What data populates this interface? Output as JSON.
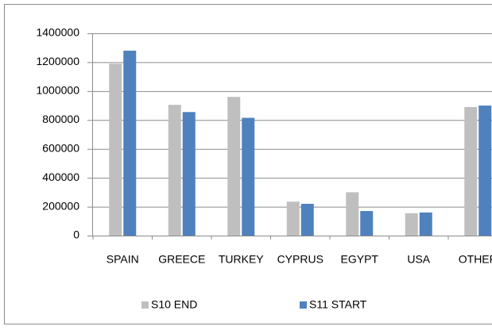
{
  "chart_data": {
    "type": "bar",
    "categories": [
      "SPAIN",
      "GREECE",
      "TURKEY",
      "CYPRUS",
      "EGYPT",
      "USA",
      "OTHER"
    ],
    "series": [
      {
        "name": "S10 END",
        "color": "#bfbfbf",
        "values": [
          1190000,
          905000,
          960000,
          235000,
          300000,
          155000,
          890000
        ]
      },
      {
        "name": "S11 START",
        "color": "#4f81bd",
        "values": [
          1280000,
          855000,
          815000,
          220000,
          170000,
          160000,
          900000
        ]
      }
    ],
    "ylim": [
      0,
      1400000
    ],
    "yticks": [
      0,
      200000,
      400000,
      600000,
      800000,
      1000000,
      1200000,
      1400000
    ],
    "grid": true,
    "legend": "bottom"
  }
}
